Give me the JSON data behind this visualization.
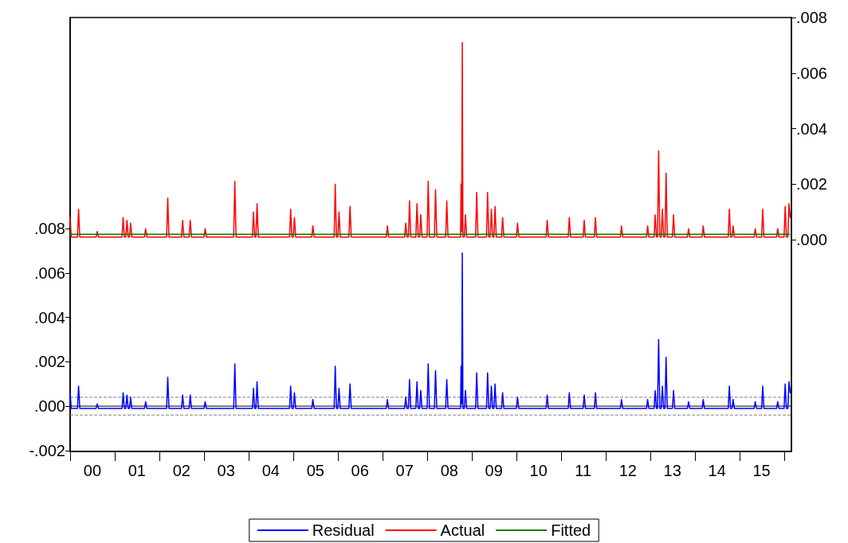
{
  "chart_data": {
    "type": "line",
    "x": [
      "2000-01-01",
      "2000-01-10",
      "2000-03-01",
      "2000-03-10",
      "2000-03-20",
      "2000-08-01",
      "2000-08-10",
      "2000-08-20",
      "2001-03-01",
      "2001-03-10",
      "2001-03-20",
      "2001-04-01",
      "2001-04-10",
      "2001-04-20",
      "2001-05-01",
      "2001-05-10",
      "2001-05-20",
      "2001-09-01",
      "2001-09-10",
      "2001-09-20",
      "2002-03-01",
      "2002-03-10",
      "2002-03-20",
      "2002-07-01",
      "2002-07-10",
      "2002-07-20",
      "2002-09-01",
      "2002-09-10",
      "2002-09-20",
      "2003-01-01",
      "2003-01-10",
      "2003-01-20",
      "2003-09-01",
      "2003-09-10",
      "2003-09-20",
      "2004-02-01",
      "2004-02-10",
      "2004-02-20",
      "2004-03-01",
      "2004-03-10",
      "2004-03-20",
      "2004-12-01",
      "2004-12-10",
      "2004-12-20",
      "2005-01-01",
      "2005-01-10",
      "2005-01-20",
      "2005-06-01",
      "2005-06-10",
      "2005-06-20",
      "2005-12-01",
      "2005-12-10",
      "2005-12-20",
      "2006-01-01",
      "2006-01-10",
      "2006-01-20",
      "2006-04-01",
      "2006-04-10",
      "2006-04-20",
      "2007-02-01",
      "2007-02-10",
      "2007-02-20",
      "2007-07-01",
      "2007-07-10",
      "2007-07-20",
      "2007-08-01",
      "2007-08-10",
      "2007-08-20",
      "2007-10-01",
      "2007-10-10",
      "2007-10-20",
      "2007-11-01",
      "2007-11-10",
      "2007-11-20",
      "2008-01-01",
      "2008-01-10",
      "2008-01-20",
      "2008-03-01",
      "2008-03-10",
      "2008-03-20",
      "2008-06-01",
      "2008-06-10",
      "2008-06-20",
      "2008-10-01",
      "2008-10-05",
      "2008-10-10",
      "2008-10-15",
      "2008-10-20",
      "2008-11-01",
      "2008-11-10",
      "2008-11-20",
      "2009-02-01",
      "2009-02-10",
      "2009-02-20",
      "2009-05-01",
      "2009-05-10",
      "2009-05-20",
      "2009-06-01",
      "2009-06-10",
      "2009-06-20",
      "2009-07-01",
      "2009-07-10",
      "2009-07-20",
      "2009-09-01",
      "2009-09-10",
      "2009-09-20",
      "2010-01-01",
      "2010-01-10",
      "2010-01-20",
      "2010-09-01",
      "2010-09-10",
      "2010-09-20",
      "2011-03-01",
      "2011-03-10",
      "2011-03-20",
      "2011-07-01",
      "2011-07-10",
      "2011-07-20",
      "2011-10-01",
      "2011-10-10",
      "2011-10-20",
      "2012-05-01",
      "2012-05-10",
      "2012-05-20",
      "2012-12-01",
      "2012-12-10",
      "2012-12-20",
      "2013-02-01",
      "2013-02-10",
      "2013-02-20",
      "2013-03-01",
      "2013-03-10",
      "2013-03-20",
      "2013-04-01",
      "2013-04-10",
      "2013-04-20",
      "2013-05-01",
      "2013-05-10",
      "2013-05-20",
      "2013-07-01",
      "2013-07-10",
      "2013-07-20",
      "2013-11-01",
      "2013-11-10",
      "2013-11-20",
      "2014-03-01",
      "2014-03-10",
      "2014-03-20",
      "2014-10-01",
      "2014-10-10",
      "2014-10-20",
      "2014-11-01",
      "2014-11-10",
      "2014-11-20",
      "2015-05-01",
      "2015-05-10",
      "2015-05-20",
      "2015-07-01",
      "2015-07-10",
      "2015-07-20",
      "2015-11-01",
      "2015-11-10",
      "2015-11-20",
      "2016-01-01",
      "2016-01-10",
      "2016-01-20",
      "2016-02-01",
      "2016-02-10",
      "2016-02-20"
    ],
    "series": [
      {
        "name": "Residual",
        "color": "#0000ff",
        "axis": "y",
        "values": [
          0.0006,
          -0.0001,
          -0.0001,
          0.0009,
          -0.0001,
          -0.0001,
          0.0001,
          -0.0001,
          -0.0001,
          0.0006,
          -0.0001,
          -0.0001,
          0.0005,
          -0.0001,
          -0.0001,
          0.0004,
          -0.0001,
          -0.0001,
          0.0002,
          -0.0001,
          -0.0001,
          0.0013,
          -0.0001,
          -0.0001,
          0.0005,
          -0.0001,
          -0.0001,
          0.0005,
          -0.0001,
          -0.0001,
          0.0002,
          -0.0001,
          -0.0001,
          0.0019,
          -0.0001,
          -0.0001,
          0.0008,
          -0.0001,
          -0.0001,
          0.0011,
          -0.0001,
          -0.0001,
          0.0009,
          -0.0001,
          -0.0001,
          0.0006,
          -0.0001,
          -0.0001,
          0.0003,
          -0.0001,
          -0.0001,
          0.0018,
          -0.0001,
          -0.0001,
          0.0008,
          -0.0001,
          -0.0001,
          0.001,
          -0.0001,
          -0.0001,
          0.0003,
          -0.0001,
          -0.0001,
          0.0004,
          -0.0001,
          -0.0001,
          0.0012,
          -0.0001,
          -0.0001,
          0.0011,
          -0.0001,
          -0.0001,
          0.0007,
          -0.0001,
          -0.0001,
          0.0019,
          -0.0001,
          -0.0001,
          0.0016,
          -0.0001,
          -0.0001,
          0.0012,
          -0.0001,
          -0.0001,
          0.0018,
          0.0001,
          0.0069,
          -0.0001,
          -0.0001,
          0.0007,
          -0.0001,
          -0.0001,
          0.0015,
          -0.0001,
          -0.0001,
          0.0015,
          -0.0001,
          -0.0001,
          0.0009,
          -0.0001,
          -0.0001,
          0.001,
          -0.0001,
          -0.0001,
          0.0006,
          -0.0001,
          -0.0001,
          0.0004,
          -0.0001,
          -0.0001,
          0.0005,
          -0.0001,
          -0.0001,
          0.0006,
          -0.0001,
          -0.0001,
          0.0005,
          -0.0001,
          -0.0001,
          0.0006,
          -0.0001,
          -0.0001,
          0.0003,
          -0.0001,
          -0.0001,
          0.0003,
          -0.0001,
          -0.0001,
          0.0007,
          -0.0001,
          -0.0001,
          0.003,
          -0.0001,
          -0.0001,
          0.0009,
          -0.0001,
          -0.0001,
          0.0022,
          -0.0001,
          -0.0001,
          0.0007,
          -0.0001,
          -0.0001,
          0.0002,
          -0.0001,
          -0.0001,
          0.0003,
          -0.0001,
          -0.0001,
          0.0009,
          -0.0001,
          -0.0001,
          0.0003,
          -0.0001,
          -0.0001,
          0.0002,
          -0.0001,
          -0.0001,
          0.0009,
          -0.0001,
          -0.0001,
          0.0002,
          -0.0001,
          -0.0001,
          0.001,
          -0.0001,
          -0.0001,
          0.0011,
          0.0006
        ]
      },
      {
        "name": "Actual",
        "color": "#ff0000",
        "axis": "y2",
        "values": [
          0.0008,
          0.0001,
          0.0001,
          0.0011,
          0.0001,
          0.0001,
          0.0003,
          0.0001,
          0.0001,
          0.0008,
          0.0001,
          0.0001,
          0.0007,
          0.0001,
          0.0001,
          0.0006,
          0.0001,
          0.0001,
          0.0004,
          0.0001,
          0.0001,
          0.0015,
          0.0001,
          0.0001,
          0.0007,
          0.0001,
          0.0001,
          0.0007,
          0.0001,
          0.0001,
          0.0004,
          0.0001,
          0.0001,
          0.0021,
          0.0001,
          0.0001,
          0.001,
          0.0001,
          0.0001,
          0.0013,
          0.0001,
          0.0001,
          0.0011,
          0.0001,
          0.0001,
          0.0008,
          0.0001,
          0.0001,
          0.0005,
          0.0001,
          0.0001,
          0.002,
          0.0001,
          0.0001,
          0.001,
          0.0001,
          0.0001,
          0.0012,
          0.0001,
          0.0001,
          0.0005,
          0.0001,
          0.0001,
          0.0006,
          0.0001,
          0.0001,
          0.0014,
          0.0001,
          0.0001,
          0.0013,
          0.0001,
          0.0001,
          0.0009,
          0.0001,
          0.0001,
          0.0021,
          0.0001,
          0.0001,
          0.0018,
          0.0001,
          0.0001,
          0.0014,
          0.0001,
          0.0001,
          0.002,
          0.0003,
          0.0071,
          0.0001,
          0.0001,
          0.0009,
          0.0001,
          0.0001,
          0.0017,
          0.0001,
          0.0001,
          0.0017,
          0.0001,
          0.0001,
          0.0011,
          0.0001,
          0.0001,
          0.0012,
          0.0001,
          0.0001,
          0.0008,
          0.0001,
          0.0001,
          0.0006,
          0.0001,
          0.0001,
          0.0007,
          0.0001,
          0.0001,
          0.0008,
          0.0001,
          0.0001,
          0.0007,
          0.0001,
          0.0001,
          0.0008,
          0.0001,
          0.0001,
          0.0005,
          0.0001,
          0.0001,
          0.0005,
          0.0001,
          0.0001,
          0.0009,
          0.0001,
          0.0001,
          0.0032,
          0.0001,
          0.0001,
          0.0011,
          0.0001,
          0.0001,
          0.0024,
          0.0001,
          0.0001,
          0.0009,
          0.0001,
          0.0001,
          0.0004,
          0.0001,
          0.0001,
          0.0005,
          0.0001,
          0.0001,
          0.0011,
          0.0001,
          0.0001,
          0.0005,
          0.0001,
          0.0001,
          0.0004,
          0.0001,
          0.0001,
          0.0011,
          0.0001,
          0.0001,
          0.0004,
          0.0001,
          0.0001,
          0.0012,
          0.0001,
          0.0001,
          0.0013,
          0.0008
        ]
      },
      {
        "name": "Fitted",
        "color": "#008000",
        "axis": "y2",
        "x": [
          "2000-01-01",
          "2016-02-15"
        ],
        "values": [
          0.0002,
          0.0002
        ]
      }
    ],
    "xlim": [
      "2000-01-01",
      "2016-03-01"
    ],
    "xticks": [
      {
        "value": "2000-01-01",
        "label": null
      },
      {
        "value": "2001-01-01",
        "label": null
      },
      {
        "value": "2002-01-01",
        "label": null
      },
      {
        "value": "2003-01-01",
        "label": null
      },
      {
        "value": "2004-01-01",
        "label": null
      },
      {
        "value": "2005-01-01",
        "label": null
      },
      {
        "value": "2006-01-01",
        "label": null
      },
      {
        "value": "2007-01-01",
        "label": null
      },
      {
        "value": "2008-01-01",
        "label": null
      },
      {
        "value": "2009-01-01",
        "label": null
      },
      {
        "value": "2010-01-01",
        "label": null
      },
      {
        "value": "2011-01-01",
        "label": null
      },
      {
        "value": "2012-01-01",
        "label": null
      },
      {
        "value": "2013-01-01",
        "label": null
      },
      {
        "value": "2014-01-01",
        "label": null
      },
      {
        "value": "2015-01-01",
        "label": null
      },
      {
        "value": "2016-01-01",
        "label": null
      },
      {
        "value": "2000-07-01",
        "label": "00"
      },
      {
        "value": "2001-07-01",
        "label": "01"
      },
      {
        "value": "2002-07-01",
        "label": "02"
      },
      {
        "value": "2003-07-01",
        "label": "03"
      },
      {
        "value": "2004-07-01",
        "label": "04"
      },
      {
        "value": "2005-07-01",
        "label": "05"
      },
      {
        "value": "2006-07-01",
        "label": "06"
      },
      {
        "value": "2007-07-01",
        "label": "07"
      },
      {
        "value": "2008-07-01",
        "label": "08"
      },
      {
        "value": "2009-07-01",
        "label": "09"
      },
      {
        "value": "2010-07-01",
        "label": "10"
      },
      {
        "value": "2011-07-01",
        "label": "11"
      },
      {
        "value": "2012-07-01",
        "label": "12"
      },
      {
        "value": "2013-07-01",
        "label": "13"
      },
      {
        "value": "2014-07-01",
        "label": "14"
      },
      {
        "value": "2015-07-01",
        "label": "15"
      }
    ],
    "ylim": [
      -0.00204,
      0.0175
    ],
    "yticks": [
      {
        "value": -0.002,
        "label": "-.002"
      },
      {
        "value": 0,
        "label": ".000"
      },
      {
        "value": 0.002,
        "label": ".002"
      },
      {
        "value": 0.004,
        "label": ".004"
      },
      {
        "value": 0.006,
        "label": ".006"
      },
      {
        "value": 0.008,
        "label": ".008"
      }
    ],
    "y2lim": [
      -0.00762,
      0.008
    ],
    "y2ticks": [
      {
        "value": 0,
        "label": ".000"
      },
      {
        "value": 0.002,
        "label": ".002"
      },
      {
        "value": 0.004,
        "label": ".004"
      },
      {
        "value": 0.006,
        "label": ".006"
      },
      {
        "value": 0.008,
        "label": ".008"
      }
    ],
    "ref_lines": [
      {
        "axis": "y",
        "value": 0,
        "color": "#000000",
        "line_style": "solid"
      },
      {
        "axis": "y",
        "value": 0.0004,
        "color": "#808080",
        "line_style": "dashed"
      },
      {
        "axis": "y",
        "value": -0.0004,
        "color": "#808080",
        "line_style": "dashed"
      }
    ],
    "legend": "bottom",
    "grid": false,
    "marker": "none",
    "line_style": "solid"
  }
}
